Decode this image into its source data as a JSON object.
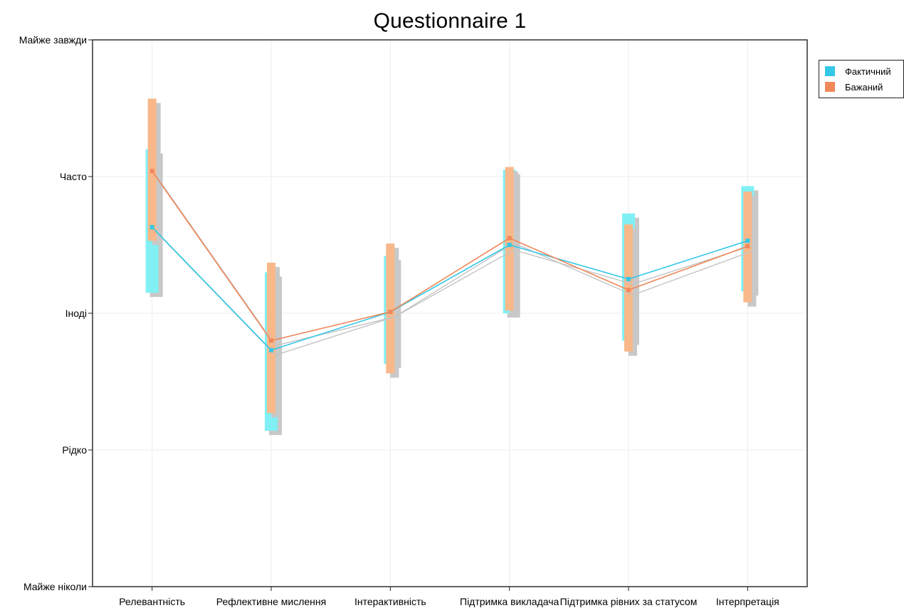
{
  "chart_data": {
    "type": "line",
    "title": "Questionnaire 1",
    "xlabel": "",
    "ylabel": "",
    "categories": [
      "Релевантність",
      "Рефлективне мислення",
      "Інтерактивність",
      "Підтримка викладача",
      "Підтримка рівних за статусом",
      "Інтерпретація"
    ],
    "y_ticks": [
      {
        "value": 1,
        "label": "Майже ніколи"
      },
      {
        "value": 2,
        "label": "Рідко"
      },
      {
        "value": 3,
        "label": "Іноді"
      },
      {
        "value": 4,
        "label": "Часто"
      },
      {
        "value": 5,
        "label": "Майже завжди"
      }
    ],
    "ylim": [
      1,
      5
    ],
    "grid": true,
    "legend_position": "top-right, outside plot",
    "series": [
      {
        "name": "Фактичний",
        "color": "#33C8E8",
        "band_color": "#80F0F4",
        "values": [
          3.63,
          2.73,
          3.01,
          3.5,
          3.25,
          3.53
        ],
        "low": [
          3.15,
          2.14,
          2.63,
          3.0,
          2.8,
          3.16
        ],
        "high": [
          4.2,
          3.3,
          3.42,
          4.05,
          3.73,
          3.93
        ]
      },
      {
        "name": "Бажаний",
        "color": "#F0885A",
        "band_color": "#F8B88A",
        "values": [
          4.04,
          2.8,
          3.01,
          3.55,
          3.17,
          3.49
        ],
        "low": [
          3.53,
          2.27,
          2.56,
          3.02,
          2.72,
          3.08
        ],
        "high": [
          4.57,
          3.37,
          3.51,
          4.07,
          3.65,
          3.89
        ]
      }
    ]
  }
}
